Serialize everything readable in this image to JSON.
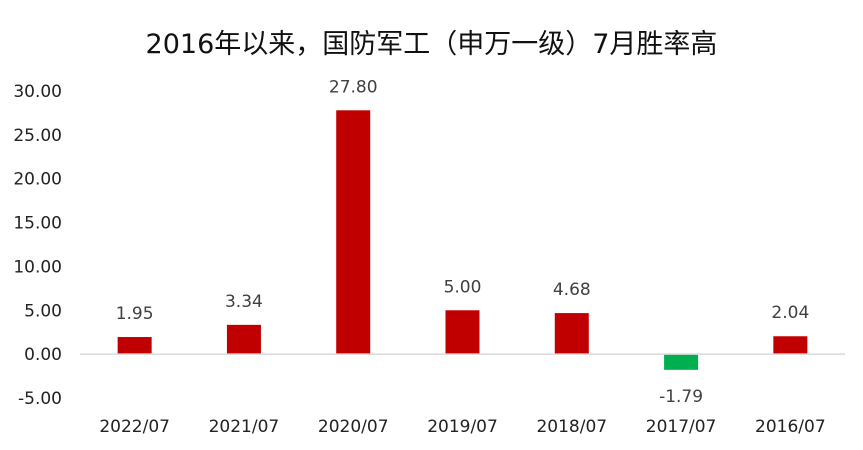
{
  "chart_data": {
    "type": "bar",
    "title": "2016年以来，国防军工（申万一级）7月胜率高",
    "categories": [
      "2022/07",
      "2021/07",
      "2020/07",
      "2019/07",
      "2018/07",
      "2017/07",
      "2016/07"
    ],
    "values": [
      1.95,
      3.34,
      27.8,
      5.0,
      4.68,
      -1.79,
      2.04
    ],
    "data_labels": [
      "1.95",
      "3.34",
      "27.80",
      "5.00",
      "4.68",
      "-1.79",
      "2.04"
    ],
    "y_ticks": [
      "-5.00",
      "0.00",
      "5.00",
      "10.00",
      "15.00",
      "20.00",
      "25.00",
      "30.00"
    ],
    "ylim": [
      -5,
      30
    ],
    "grid": false,
    "legend": "none",
    "colors": {
      "positive": "#C00000",
      "negative": "#00B050",
      "axis": "#D9D9D9",
      "text": "#222222",
      "label": "#404040"
    }
  }
}
